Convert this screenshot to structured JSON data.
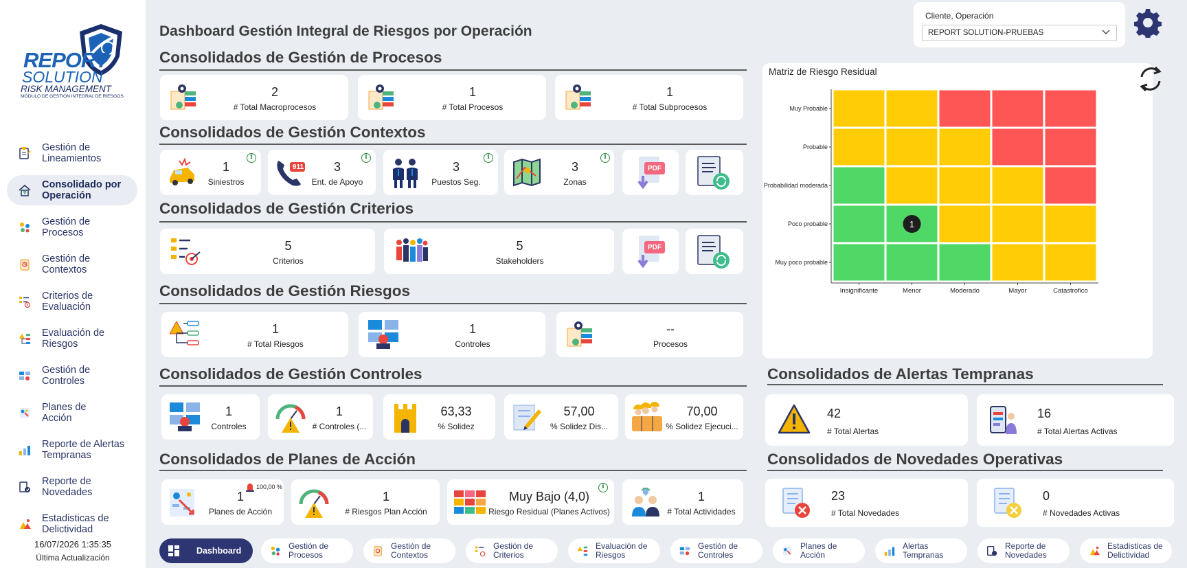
{
  "page_title": "Dashboard Gestión Integral de Riesgos por Operación",
  "logo": {
    "line1": "REPORT",
    "line2": "SOLUTION",
    "line3": "RISK MANAGEMENT",
    "line4": "MÓDULO DE GESTIÓN INTEGRAL DE RIESGOS"
  },
  "sidebar": {
    "items": [
      {
        "label1": "Gestión de",
        "label2": "Lineamientos",
        "icon": "clipboard-icon"
      },
      {
        "label1": "Consolidado por",
        "label2": "Operación",
        "icon": "home-up-icon",
        "active": true
      },
      {
        "label1": "Gestión de",
        "label2": "Procesos",
        "icon": "process-icon"
      },
      {
        "label1": "Gestión de",
        "label2": "Contextos",
        "icon": "context-icon"
      },
      {
        "label1": "Criterios de",
        "label2": "Evaluación",
        "icon": "criteria-icon"
      },
      {
        "label1": "Evaluación de",
        "label2": "Riesgos",
        "icon": "risk-eval-icon"
      },
      {
        "label1": "Gestión de",
        "label2": "Controles",
        "icon": "controls-icon"
      },
      {
        "label1": "Planes de",
        "label2": "Acción",
        "icon": "action-plan-icon"
      },
      {
        "label1": "Reporte de Alertas",
        "label2": "Tempranas",
        "icon": "alerts-icon"
      },
      {
        "label1": "Reporte de",
        "label2": "Novedades",
        "icon": "news-icon"
      },
      {
        "label1": "Estadisticas de",
        "label2": "Delictividad",
        "icon": "stats-icon"
      }
    ],
    "last_update_time": "16/07/2026 1:35:35",
    "last_update_label": "Última Actualización"
  },
  "filter": {
    "label": "Cliente, Operación",
    "value": "REPORT SOLUTION-PRUEBAS"
  },
  "sections": {
    "procesos": {
      "title": "Consolidados de Gestión de Procesos",
      "cards": [
        {
          "value": "2",
          "label": "# Total Macroprocesos"
        },
        {
          "value": "1",
          "label": "# Total Procesos"
        },
        {
          "value": "1",
          "label": "# Total Subprocesos"
        }
      ]
    },
    "contextos": {
      "title": "Consolidados de Gestión Contextos",
      "cards": [
        {
          "value": "1",
          "label": "Siniestros"
        },
        {
          "value": "3",
          "label": "Ent. de Apoyo"
        },
        {
          "value": "3",
          "label": "Puestos Seg."
        },
        {
          "value": "3",
          "label": "Zonas"
        }
      ],
      "pdf_label": "PDF",
      "phone_label": "911"
    },
    "criterios": {
      "title": "Consolidados de Gestión Criterios",
      "cards": [
        {
          "value": "5",
          "label": "Criterios"
        },
        {
          "value": "5",
          "label": "Stakeholders"
        }
      ],
      "pdf_label": "PDF"
    },
    "riesgos": {
      "title": "Consolidados de Gestión Riesgos",
      "cards": [
        {
          "value": "1",
          "label": "# Total Riesgos"
        },
        {
          "value": "1",
          "label": "Controles"
        },
        {
          "value": "--",
          "label": "Procesos"
        }
      ]
    },
    "controles": {
      "title": "Consolidados de Gestión Controles",
      "cards": [
        {
          "value": "1",
          "label": "Controles"
        },
        {
          "value": "1",
          "label": "# Controles (..."
        },
        {
          "value": "63,33",
          "label": "% Solidez"
        },
        {
          "value": "57,00",
          "label": "% Solidez Dis..."
        },
        {
          "value": "70,00",
          "label": "% Solidez Ejecuci..."
        }
      ]
    },
    "planes": {
      "title": "Consolidados de Planes de Acción",
      "cards": [
        {
          "value": "1",
          "label": "Planes de Acción",
          "badge": "100,00 %"
        },
        {
          "value": "1",
          "label": "# Riesgos Plan Acción"
        },
        {
          "value": "Muy Bajo (4,0)",
          "label": "Riesgo Residual (Planes Activos)"
        },
        {
          "value": "1",
          "label": "# Total Actividades"
        }
      ]
    },
    "alertas": {
      "title": "Consolidados de Alertas Tempranas",
      "cards": [
        {
          "value": "42",
          "label": "# Total Alertas"
        },
        {
          "value": "16",
          "label": "# Total Alertas Activas"
        }
      ]
    },
    "novedades": {
      "title": "Consolidados de Novedades Operativas",
      "cards": [
        {
          "value": "23",
          "label": "# Total Novedades"
        },
        {
          "value": "0",
          "label": "# Novedades Activas"
        }
      ]
    }
  },
  "chart_data": {
    "type": "heatmap",
    "title": "Matriz de Riesgo Residual",
    "rows": [
      "Muy Probable",
      "Probable",
      "Probabilidad moderada",
      "Poco probable",
      "Muy poco probable"
    ],
    "columns": [
      "Insignificante",
      "Menor",
      "Moderado",
      "Mayor",
      "Catastrofico"
    ],
    "cell_levels": [
      [
        "yellow",
        "yellow",
        "red",
        "red",
        "red"
      ],
      [
        "yellow",
        "yellow",
        "yellow",
        "red",
        "red"
      ],
      [
        "green",
        "yellow",
        "yellow",
        "yellow",
        "red"
      ],
      [
        "green",
        "green",
        "yellow",
        "yellow",
        "yellow"
      ],
      [
        "green",
        "green",
        "green",
        "yellow",
        "yellow"
      ]
    ],
    "colors": {
      "green": "#4fd865",
      "yellow": "#ffcc05",
      "red": "#fd5654"
    },
    "markers": [
      {
        "row": "Poco probable",
        "column": "Menor",
        "count": "1"
      }
    ]
  },
  "bottom_tabs": [
    {
      "label1": "Dashboard",
      "label2": "",
      "icon": "dashboard-icon",
      "active": true
    },
    {
      "label1": "Gestión de",
      "label2": "Procesos",
      "icon": "process-icon"
    },
    {
      "label1": "Gestión de",
      "label2": "Contextos",
      "icon": "context-icon"
    },
    {
      "label1": "Gestión de",
      "label2": "Criterios",
      "icon": "criteria-icon"
    },
    {
      "label1": "Evaluación de",
      "label2": "Riesgos",
      "icon": "risk-eval-icon"
    },
    {
      "label1": "Gestión de",
      "label2": "Controles",
      "icon": "controls-icon"
    },
    {
      "label1": "Planes de",
      "label2": "Acción",
      "icon": "action-plan-icon"
    },
    {
      "label1": "Alertas",
      "label2": "Tempranas",
      "icon": "alerts-icon"
    },
    {
      "label1": "Reporte de",
      "label2": "Novedades",
      "icon": "news-icon"
    },
    {
      "label1": "Estadisticas de",
      "label2": "Delictividad",
      "icon": "stats-icon"
    }
  ]
}
